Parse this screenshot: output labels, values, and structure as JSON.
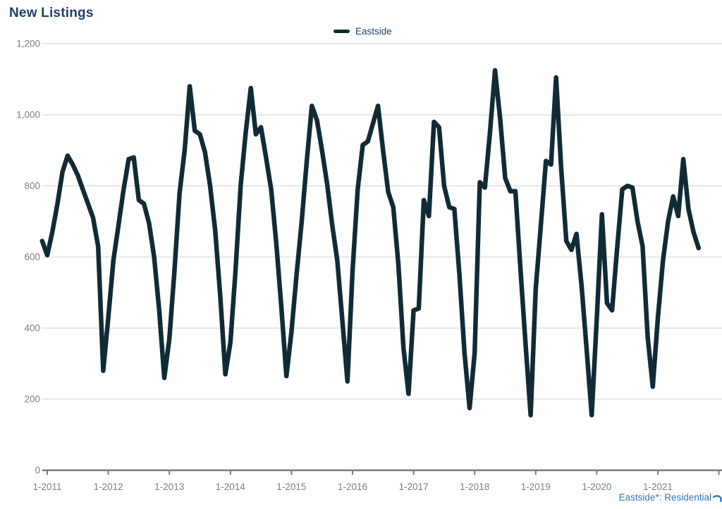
{
  "title": "New Listings",
  "legend": {
    "series_label": "Eastside"
  },
  "footnote": "Eastside*: Residential",
  "colors": {
    "title_text": "#1e3f67",
    "series_line": "#112b36",
    "gridline": "#d9d9d9",
    "axis_line": "#7a7a7a",
    "tick_label": "#7f7f7f",
    "footnote_text": "#2e75b6"
  },
  "chart_data": {
    "type": "line",
    "title": "New Listings",
    "series_name": "Eastside",
    "frequency": "monthly",
    "start_month": "12-2010",
    "end_month": "9-2021",
    "grid": "horizontal",
    "legend_position": "top-center",
    "xlabel": "",
    "ylabel": "",
    "ylim": [
      0,
      1200
    ],
    "y_ticks": [
      0,
      200,
      400,
      600,
      800,
      1000,
      1200
    ],
    "y_tick_labels": [
      "0",
      "200",
      "400",
      "600",
      "800",
      "1,000",
      "1,200"
    ],
    "x_tick_labels": [
      "1-2011",
      "1-2012",
      "1-2013",
      "1-2014",
      "1-2015",
      "1-2016",
      "1-2017",
      "1-2018",
      "1-2019",
      "1-2020",
      "1-2021"
    ],
    "values": [
      645,
      605,
      670,
      750,
      840,
      885,
      860,
      830,
      790,
      750,
      710,
      630,
      280,
      430,
      590,
      690,
      790,
      875,
      880,
      760,
      750,
      695,
      600,
      450,
      260,
      370,
      560,
      780,
      900,
      1080,
      955,
      945,
      895,
      800,
      675,
      490,
      270,
      360,
      560,
      800,
      950,
      1075,
      945,
      965,
      880,
      790,
      640,
      460,
      265,
      390,
      550,
      700,
      870,
      1025,
      985,
      900,
      805,
      690,
      590,
      420,
      250,
      560,
      790,
      915,
      925,
      975,
      1025,
      900,
      783,
      740,
      580,
      345,
      215,
      450,
      455,
      760,
      715,
      980,
      965,
      800,
      740,
      735,
      550,
      330,
      175,
      330,
      810,
      795,
      950,
      1125,
      990,
      822,
      785,
      785,
      565,
      355,
      155,
      510,
      690,
      870,
      860,
      1105,
      850,
      645,
      620,
      665,
      520,
      340,
      155,
      430,
      720,
      470,
      450,
      625,
      790,
      800,
      795,
      700,
      630,
      375,
      235,
      430,
      590,
      700,
      770,
      715,
      875,
      735,
      670,
      625
    ]
  }
}
